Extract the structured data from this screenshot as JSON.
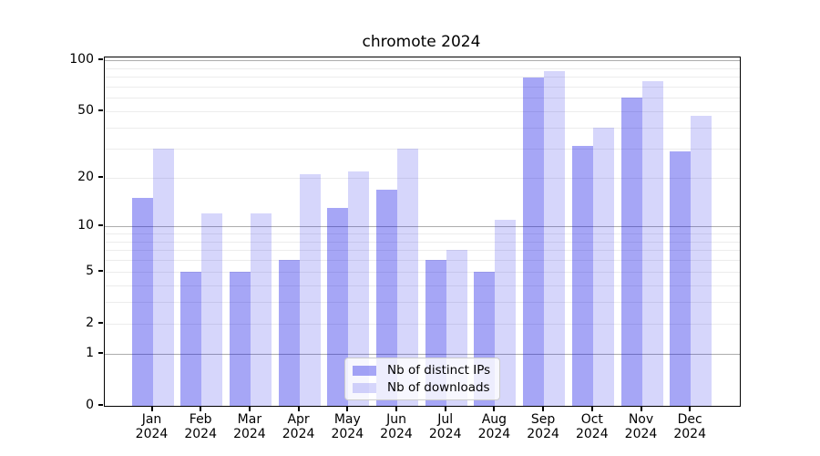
{
  "chart_data": {
    "type": "bar",
    "title": "chromote 2024",
    "x_categories": [
      {
        "month": "Jan",
        "year": "2024"
      },
      {
        "month": "Feb",
        "year": "2024"
      },
      {
        "month": "Mar",
        "year": "2024"
      },
      {
        "month": "Apr",
        "year": "2024"
      },
      {
        "month": "May",
        "year": "2024"
      },
      {
        "month": "Jun",
        "year": "2024"
      },
      {
        "month": "Jul",
        "year": "2024"
      },
      {
        "month": "Aug",
        "year": "2024"
      },
      {
        "month": "Sep",
        "year": "2024"
      },
      {
        "month": "Oct",
        "year": "2024"
      },
      {
        "month": "Nov",
        "year": "2024"
      },
      {
        "month": "Dec",
        "year": "2024"
      }
    ],
    "series": [
      {
        "name": "Nb of distinct IPs",
        "color": "rgba(0,0,230,0.35)",
        "values": [
          15,
          5,
          5,
          6,
          13,
          17,
          6,
          5,
          79,
          31,
          60,
          29
        ]
      },
      {
        "name": "Nb of downloads",
        "color": "rgba(0,0,230,0.16)",
        "values": [
          30,
          12,
          12,
          21,
          22,
          30,
          7,
          11,
          86,
          40,
          75,
          47
        ]
      }
    ],
    "y_axis": {
      "scale": "log1p",
      "tick_values": [
        0,
        1,
        2,
        5,
        10,
        20,
        50,
        100
      ],
      "tick_labels": [
        "0",
        "1",
        "2",
        "5",
        "10",
        "20",
        "50",
        "100"
      ],
      "major_gridlines": [
        1,
        10,
        100
      ],
      "minor_gridlines": [
        2,
        3,
        4,
        5,
        6,
        7,
        8,
        9,
        20,
        30,
        40,
        50,
        60,
        70,
        80,
        90
      ],
      "range": [
        0,
        100
      ]
    },
    "legend": {
      "position": "bottom-center",
      "entries": [
        "Nb of distinct IPs",
        "Nb of downloads"
      ]
    },
    "colors": {
      "major_grid": "#adadad",
      "minor_grid": "#ececec",
      "spine": "#000000",
      "text": "#000000",
      "background": "#ffffff"
    }
  }
}
